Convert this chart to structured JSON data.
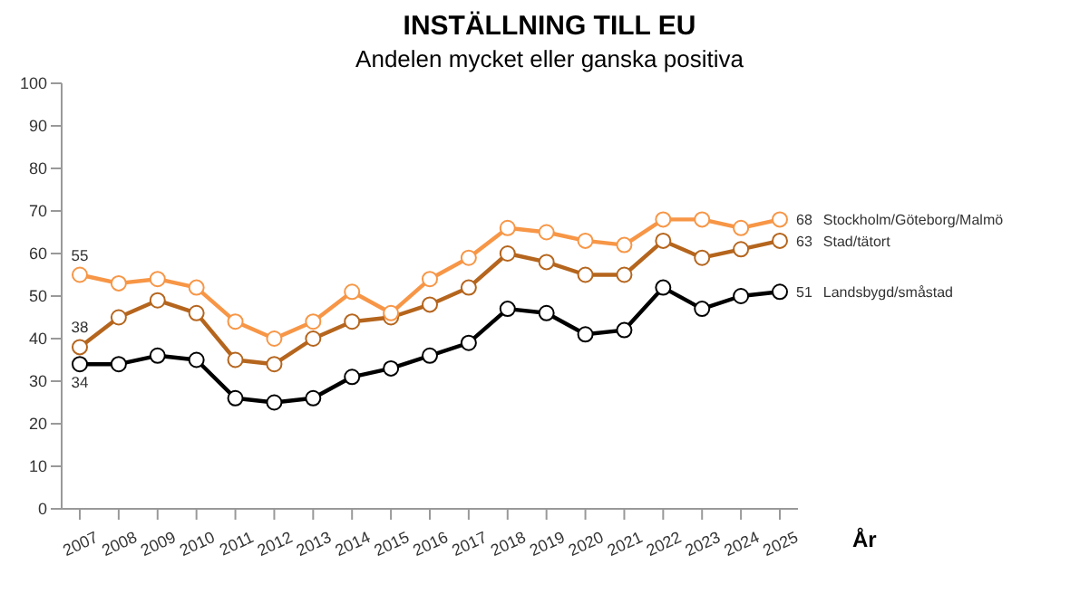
{
  "chart_data": {
    "type": "line",
    "title": "INSTÄLLNING TILL EU",
    "subtitle": "Andelen mycket eller ganska positiva",
    "xlabel": "År",
    "categories": [
      "2007",
      "2008",
      "2009",
      "2010",
      "2011",
      "2012",
      "2013",
      "2014",
      "2015",
      "2016",
      "2017",
      "2018",
      "2019",
      "2020",
      "2021",
      "2022",
      "2023",
      "2024",
      "2025"
    ],
    "series": [
      {
        "name": "Stockholm/Göteborg/Malmö",
        "color": "#f79646",
        "values": [
          55,
          53,
          54,
          52,
          44,
          40,
          44,
          51,
          46,
          54,
          59,
          66,
          65,
          63,
          62,
          68,
          68,
          66,
          68
        ],
        "value_labels": [
          "55",
          null,
          null,
          null,
          null,
          null,
          null,
          null,
          null,
          null,
          null,
          null,
          null,
          null,
          null,
          null,
          null,
          null,
          "68"
        ]
      },
      {
        "name": "Stad/tätort",
        "color": "#b5651d",
        "values": [
          38,
          45,
          49,
          46,
          35,
          34,
          40,
          44,
          45,
          48,
          52,
          60,
          58,
          55,
          55,
          63,
          59,
          61,
          63
        ],
        "value_labels": [
          "38",
          null,
          null,
          null,
          null,
          null,
          null,
          null,
          null,
          null,
          null,
          null,
          null,
          null,
          null,
          null,
          null,
          null,
          "63"
        ]
      },
      {
        "name": "Landsbygd/småstad",
        "color": "#000000",
        "values": [
          34,
          34,
          36,
          35,
          26,
          25,
          26,
          31,
          33,
          36,
          39,
          47,
          46,
          41,
          42,
          52,
          47,
          50,
          51
        ],
        "value_labels": [
          "34",
          null,
          null,
          null,
          null,
          null,
          null,
          null,
          null,
          null,
          null,
          null,
          null,
          null,
          null,
          null,
          null,
          null,
          "51"
        ]
      }
    ],
    "ylim": [
      0,
      100
    ],
    "yticks": [
      0,
      10,
      20,
      30,
      40,
      50,
      60,
      70,
      80,
      90,
      100
    ],
    "grid": false,
    "legend": false,
    "marker": "circle",
    "line_style": "solid"
  }
}
